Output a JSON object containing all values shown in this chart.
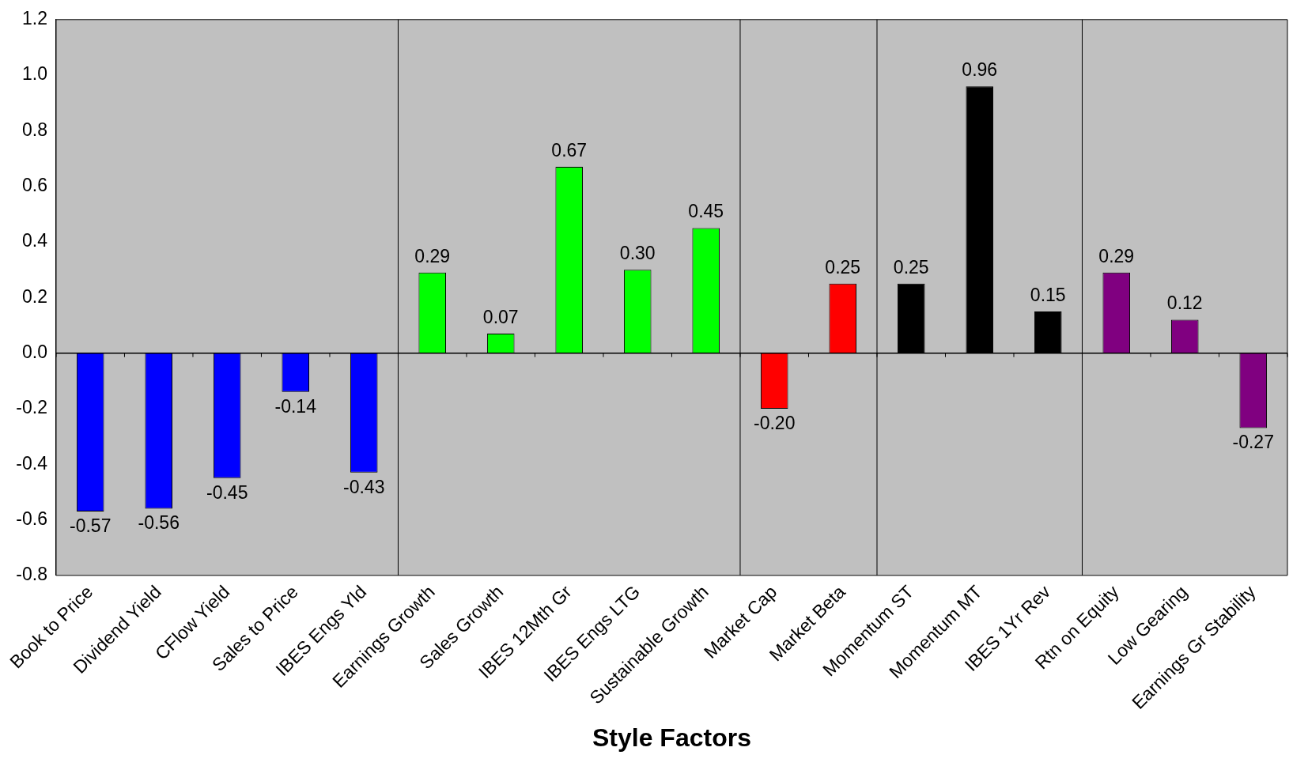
{
  "chart_data": {
    "type": "bar",
    "xlabel": "Style Factors",
    "categories": [
      "Book to Price",
      "Dividend Yield",
      "CFlow Yield",
      "Sales to Price",
      "IBES Engs Yld",
      "Earnings Growth",
      "Sales Growth",
      "IBES 12Mth Gr",
      "IBES Engs LTG",
      "Sustainable Growth",
      "Market Cap",
      "Market Beta",
      "Momentum ST",
      "Momentum MT",
      "IBES 1Yr Rev",
      "Rtn on Equity",
      "Low Gearing",
      "Earnings Gr Stability"
    ],
    "values": [
      -0.57,
      -0.56,
      -0.45,
      -0.14,
      -0.43,
      0.29,
      0.07,
      0.67,
      0.3,
      0.45,
      -0.2,
      0.25,
      0.25,
      0.96,
      0.15,
      0.29,
      0.12,
      -0.27
    ],
    "value_labels": [
      "-0.57",
      "-0.56",
      "-0.45",
      "-0.14",
      "-0.43",
      "0.29",
      "0.07",
      "0.67",
      "0.30",
      "0.45",
      "-0.20",
      "0.25",
      "0.25",
      "0.96",
      "0.15",
      "0.29",
      "0.12",
      "-0.27"
    ],
    "colors": [
      "#0000ff",
      "#0000ff",
      "#0000ff",
      "#0000ff",
      "#0000ff",
      "#00ff00",
      "#00ff00",
      "#00ff00",
      "#00ff00",
      "#00ff00",
      "#ff0000",
      "#ff0000",
      "#000000",
      "#000000",
      "#000000",
      "#800080",
      "#800080",
      "#800080"
    ],
    "ylim": [
      -0.8,
      1.2
    ],
    "yticks": [
      {
        "value": 1.2,
        "label": "1.2"
      },
      {
        "value": 1.0,
        "label": "1.0"
      },
      {
        "value": 0.8,
        "label": "0.8"
      },
      {
        "value": 0.6,
        "label": "0.6"
      },
      {
        "value": 0.4,
        "label": "0.4"
      },
      {
        "value": 0.2,
        "label": "0.2"
      },
      {
        "value": 0,
        "label": "0.0"
      },
      {
        "value": -0.2,
        "label": "-0.2"
      },
      {
        "value": -0.4,
        "label": "-0.4"
      },
      {
        "value": -0.6,
        "label": "-0.6"
      },
      {
        "value": -0.8,
        "label": "-0.8"
      }
    ],
    "grid": false,
    "legend": false
  }
}
